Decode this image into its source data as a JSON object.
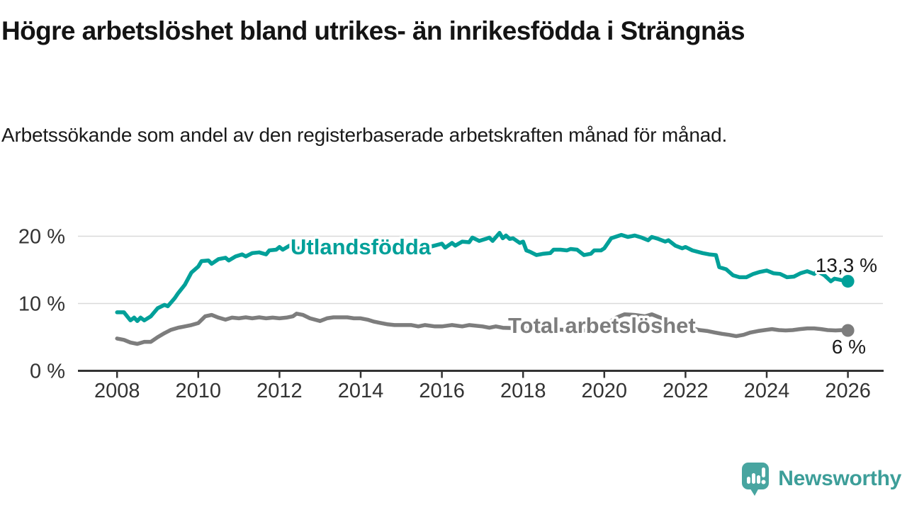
{
  "header": {
    "title": "Högre arbetslöshet bland utrikes- än inrikesfödda i Strängnäs",
    "subtitle": "Arbetssökande som andel av den registerbaserade arbetskraften månad för månad."
  },
  "branding": {
    "logo_text": "Newsworthy",
    "logo_color": "#3d9e99",
    "logo_bubble_color": "#48a5a0"
  },
  "colors": {
    "series_foreign_born": "#00a099",
    "series_total": "#7d7d7d",
    "axis": "#333333",
    "grid": "#d9d9d9",
    "value_label_text": "#1a1a1a",
    "background": "#ffffff"
  },
  "chart_data": {
    "type": "line",
    "title": "Högre arbetslöshet bland utrikes- än inrikesfödda i Strängnäs",
    "subtitle": "Arbetssökande som andel av den registerbaserade arbetskraften månad för månad.",
    "grid": "horizontal-light",
    "legend_position": "inline-labels-on-lines",
    "x_axis": {
      "ticks": [
        2008,
        2010,
        2012,
        2014,
        2016,
        2018,
        2020,
        2022,
        2024,
        2026
      ],
      "range": [
        2007.0,
        2026.9
      ]
    },
    "y_axis": {
      "unit": "%",
      "ticks": [
        0,
        10,
        20
      ],
      "tick_labels": [
        "0 %",
        "10 %",
        "20 %"
      ],
      "range": [
        0,
        21.6
      ]
    },
    "series": [
      {
        "name": "Utlandsfödda",
        "color": "#00a099",
        "end_label": "13,3 %",
        "end_value": 13.3,
        "points": [
          [
            2008.0,
            8.7
          ],
          [
            2008.17,
            8.7
          ],
          [
            2008.33,
            7.5
          ],
          [
            2008.42,
            7.9
          ],
          [
            2008.5,
            7.4
          ],
          [
            2008.58,
            7.9
          ],
          [
            2008.67,
            7.5
          ],
          [
            2008.83,
            8.1
          ],
          [
            2009.0,
            9.3
          ],
          [
            2009.17,
            9.8
          ],
          [
            2009.25,
            9.6
          ],
          [
            2009.42,
            10.8
          ],
          [
            2009.5,
            11.5
          ],
          [
            2009.67,
            12.8
          ],
          [
            2009.83,
            14.6
          ],
          [
            2010.0,
            15.5
          ],
          [
            2010.08,
            16.3
          ],
          [
            2010.25,
            16.4
          ],
          [
            2010.33,
            15.9
          ],
          [
            2010.5,
            16.6
          ],
          [
            2010.67,
            16.8
          ],
          [
            2010.75,
            16.4
          ],
          [
            2010.92,
            17.0
          ],
          [
            2011.08,
            17.3
          ],
          [
            2011.17,
            17.0
          ],
          [
            2011.33,
            17.5
          ],
          [
            2011.5,
            17.6
          ],
          [
            2011.67,
            17.3
          ],
          [
            2011.75,
            17.9
          ],
          [
            2011.92,
            18.0
          ],
          [
            2012.0,
            18.4
          ],
          [
            2012.08,
            18.0
          ],
          [
            2012.25,
            18.6
          ],
          [
            2012.42,
            18.2
          ],
          [
            2012.58,
            18.2
          ],
          [
            2012.67,
            17.9
          ],
          [
            2012.83,
            18.0
          ],
          [
            2012.92,
            18.2
          ],
          [
            2013.08,
            17.9
          ],
          [
            2013.25,
            18.0
          ],
          [
            2013.33,
            18.4
          ],
          [
            2013.5,
            18.0
          ],
          [
            2013.67,
            17.7
          ],
          [
            2013.75,
            18.0
          ],
          [
            2013.92,
            18.2
          ],
          [
            2014.08,
            18.6
          ],
          [
            2014.25,
            18.2
          ],
          [
            2014.5,
            18.3
          ],
          [
            2014.75,
            18.4
          ],
          [
            2015.0,
            18.3
          ],
          [
            2015.25,
            18.5
          ],
          [
            2015.5,
            18.4
          ],
          [
            2015.75,
            18.5
          ],
          [
            2016.0,
            18.9
          ],
          [
            2016.08,
            18.3
          ],
          [
            2016.25,
            19.0
          ],
          [
            2016.33,
            18.6
          ],
          [
            2016.5,
            19.2
          ],
          [
            2016.67,
            19.1
          ],
          [
            2016.75,
            19.8
          ],
          [
            2016.92,
            19.3
          ],
          [
            2017.08,
            19.6
          ],
          [
            2017.17,
            19.8
          ],
          [
            2017.25,
            19.3
          ],
          [
            2017.42,
            20.5
          ],
          [
            2017.5,
            19.7
          ],
          [
            2017.58,
            20.1
          ],
          [
            2017.67,
            19.6
          ],
          [
            2017.75,
            19.7
          ],
          [
            2017.92,
            19.0
          ],
          [
            2018.0,
            19.2
          ],
          [
            2018.08,
            17.9
          ],
          [
            2018.17,
            17.7
          ],
          [
            2018.33,
            17.2
          ],
          [
            2018.5,
            17.4
          ],
          [
            2018.67,
            17.5
          ],
          [
            2018.75,
            18.0
          ],
          [
            2018.92,
            18.0
          ],
          [
            2019.08,
            17.9
          ],
          [
            2019.17,
            18.1
          ],
          [
            2019.33,
            18.0
          ],
          [
            2019.5,
            17.2
          ],
          [
            2019.67,
            17.4
          ],
          [
            2019.75,
            17.9
          ],
          [
            2019.92,
            17.9
          ],
          [
            2020.0,
            18.2
          ],
          [
            2020.17,
            19.7
          ],
          [
            2020.42,
            20.2
          ],
          [
            2020.58,
            19.9
          ],
          [
            2020.75,
            20.1
          ],
          [
            2020.92,
            19.8
          ],
          [
            2021.08,
            19.4
          ],
          [
            2021.17,
            19.9
          ],
          [
            2021.33,
            19.6
          ],
          [
            2021.5,
            19.2
          ],
          [
            2021.58,
            19.4
          ],
          [
            2021.75,
            18.6
          ],
          [
            2021.92,
            18.2
          ],
          [
            2022.0,
            18.4
          ],
          [
            2022.17,
            17.9
          ],
          [
            2022.42,
            17.5
          ],
          [
            2022.58,
            17.3
          ],
          [
            2022.75,
            17.2
          ],
          [
            2022.83,
            15.4
          ],
          [
            2023.0,
            15.1
          ],
          [
            2023.17,
            14.2
          ],
          [
            2023.33,
            13.9
          ],
          [
            2023.5,
            13.9
          ],
          [
            2023.67,
            14.4
          ],
          [
            2023.83,
            14.7
          ],
          [
            2024.0,
            14.9
          ],
          [
            2024.17,
            14.5
          ],
          [
            2024.33,
            14.4
          ],
          [
            2024.5,
            13.9
          ],
          [
            2024.67,
            14.0
          ],
          [
            2024.83,
            14.5
          ],
          [
            2025.0,
            14.8
          ],
          [
            2025.17,
            14.4
          ],
          [
            2025.25,
            14.8
          ],
          [
            2025.42,
            14.2
          ],
          [
            2025.58,
            13.3
          ],
          [
            2025.67,
            13.7
          ],
          [
            2025.83,
            13.5
          ],
          [
            2026.0,
            13.3
          ]
        ]
      },
      {
        "name": "Total arbetslöshet",
        "color": "#7d7d7d",
        "end_label": "6 %",
        "end_value": 6.0,
        "points": [
          [
            2008.0,
            4.8
          ],
          [
            2008.17,
            4.6
          ],
          [
            2008.33,
            4.2
          ],
          [
            2008.5,
            4.0
          ],
          [
            2008.67,
            4.3
          ],
          [
            2008.83,
            4.3
          ],
          [
            2009.0,
            5.0
          ],
          [
            2009.17,
            5.6
          ],
          [
            2009.33,
            6.1
          ],
          [
            2009.5,
            6.4
          ],
          [
            2009.67,
            6.6
          ],
          [
            2009.83,
            6.8
          ],
          [
            2010.0,
            7.1
          ],
          [
            2010.17,
            8.1
          ],
          [
            2010.33,
            8.3
          ],
          [
            2010.5,
            7.9
          ],
          [
            2010.67,
            7.6
          ],
          [
            2010.83,
            7.9
          ],
          [
            2011.0,
            7.8
          ],
          [
            2011.17,
            7.95
          ],
          [
            2011.33,
            7.8
          ],
          [
            2011.5,
            7.95
          ],
          [
            2011.67,
            7.8
          ],
          [
            2011.83,
            7.9
          ],
          [
            2012.0,
            7.8
          ],
          [
            2012.17,
            7.9
          ],
          [
            2012.33,
            8.1
          ],
          [
            2012.42,
            8.5
          ],
          [
            2012.58,
            8.3
          ],
          [
            2012.75,
            7.8
          ],
          [
            2013.0,
            7.4
          ],
          [
            2013.17,
            7.8
          ],
          [
            2013.33,
            7.95
          ],
          [
            2013.5,
            7.95
          ],
          [
            2013.67,
            7.95
          ],
          [
            2013.83,
            7.8
          ],
          [
            2014.0,
            7.8
          ],
          [
            2014.17,
            7.6
          ],
          [
            2014.33,
            7.3
          ],
          [
            2014.5,
            7.1
          ],
          [
            2014.67,
            6.9
          ],
          [
            2014.83,
            6.8
          ],
          [
            2015.0,
            6.8
          ],
          [
            2015.25,
            6.8
          ],
          [
            2015.42,
            6.6
          ],
          [
            2015.58,
            6.8
          ],
          [
            2015.83,
            6.6
          ],
          [
            2016.0,
            6.6
          ],
          [
            2016.25,
            6.8
          ],
          [
            2016.5,
            6.6
          ],
          [
            2016.67,
            6.8
          ],
          [
            2017.0,
            6.6
          ],
          [
            2017.17,
            6.4
          ],
          [
            2017.33,
            6.6
          ],
          [
            2017.5,
            6.4
          ],
          [
            2018.0,
            6.3
          ],
          [
            2018.5,
            6.2
          ],
          [
            2019.0,
            6.1
          ],
          [
            2019.5,
            6.0
          ],
          [
            2019.83,
            6.1
          ],
          [
            2020.0,
            6.5
          ],
          [
            2020.25,
            7.8
          ],
          [
            2020.5,
            8.4
          ],
          [
            2020.75,
            8.3
          ],
          [
            2021.0,
            8.1
          ],
          [
            2021.17,
            8.4
          ],
          [
            2021.5,
            7.6
          ],
          [
            2021.75,
            7.0
          ],
          [
            2022.0,
            6.6
          ],
          [
            2022.17,
            6.3
          ],
          [
            2022.35,
            6.05
          ],
          [
            2022.55,
            5.9
          ],
          [
            2022.72,
            5.7
          ],
          [
            2022.9,
            5.5
          ],
          [
            2023.07,
            5.35
          ],
          [
            2023.25,
            5.15
          ],
          [
            2023.43,
            5.35
          ],
          [
            2023.6,
            5.7
          ],
          [
            2023.78,
            5.9
          ],
          [
            2023.95,
            6.05
          ],
          [
            2024.13,
            6.2
          ],
          [
            2024.3,
            6.05
          ],
          [
            2024.47,
            6.0
          ],
          [
            2024.64,
            6.05
          ],
          [
            2024.82,
            6.2
          ],
          [
            2025.0,
            6.3
          ],
          [
            2025.17,
            6.3
          ],
          [
            2025.34,
            6.2
          ],
          [
            2025.5,
            6.05
          ],
          [
            2025.7,
            6.0
          ],
          [
            2025.87,
            6.05
          ],
          [
            2026.0,
            6.0
          ]
        ]
      }
    ]
  }
}
